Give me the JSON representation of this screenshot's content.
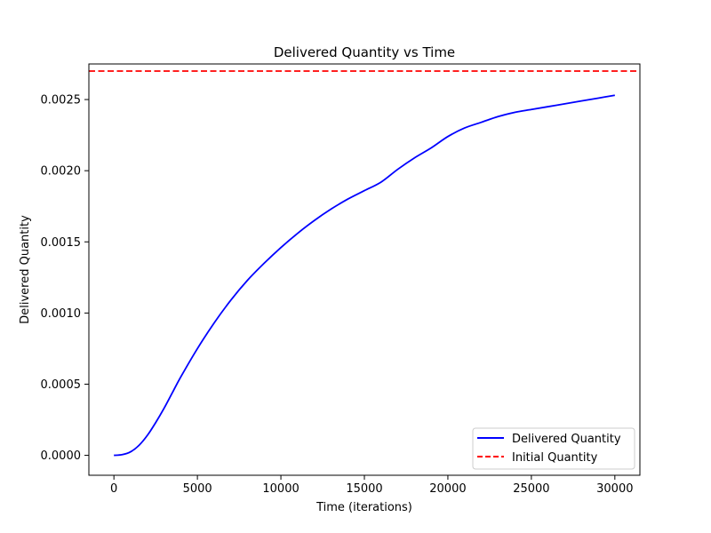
{
  "chart_data": {
    "type": "line",
    "title": "Delivered Quantity vs Time",
    "xlabel": "Time (iterations)",
    "ylabel": "Delivered Quantity",
    "xlim": [
      -1500,
      31500
    ],
    "ylim": [
      -0.00014,
      0.00275
    ],
    "x_ticks": [
      0,
      5000,
      10000,
      15000,
      20000,
      25000,
      30000
    ],
    "x_tick_labels": [
      "0",
      "5000",
      "10000",
      "15000",
      "20000",
      "25000",
      "30000"
    ],
    "y_ticks": [
      0,
      0.0005,
      0.001,
      0.0015,
      0.002,
      0.0025
    ],
    "y_tick_labels": [
      "0.0000",
      "0.0005",
      "0.0010",
      "0.0015",
      "0.0020",
      "0.0025"
    ],
    "grid": false,
    "legend_position": "lower-right",
    "series": [
      {
        "name": "Delivered Quantity",
        "style": "solid",
        "color": "#0000ff",
        "x": [
          0,
          500,
          1000,
          1500,
          2000,
          2500,
          3000,
          3500,
          4000,
          5000,
          6000,
          7000,
          8000,
          9000,
          10000,
          11000,
          12000,
          13000,
          14000,
          15000,
          16000,
          17000,
          18000,
          19000,
          20000,
          21000,
          22000,
          23000,
          24000,
          25000,
          26000,
          27000,
          28000,
          29000,
          30000
        ],
        "y": [
          0,
          5e-06,
          2.5e-05,
          7e-05,
          0.00014,
          0.00023,
          0.00033,
          0.00044,
          0.00055,
          0.00075,
          0.00093,
          0.00109,
          0.00123,
          0.00135,
          0.00146,
          0.00156,
          0.00165,
          0.00173,
          0.0018,
          0.00186,
          0.00192,
          0.00201,
          0.00209,
          0.00216,
          0.00224,
          0.0023,
          0.00234,
          0.00238,
          0.00241,
          0.00243,
          0.00245,
          0.00247,
          0.00249,
          0.00251,
          0.00253
        ]
      },
      {
        "name": "Initial Quantity",
        "style": "dashed",
        "color": "#ff0000",
        "type": "hline",
        "y": 0.0027
      }
    ]
  }
}
